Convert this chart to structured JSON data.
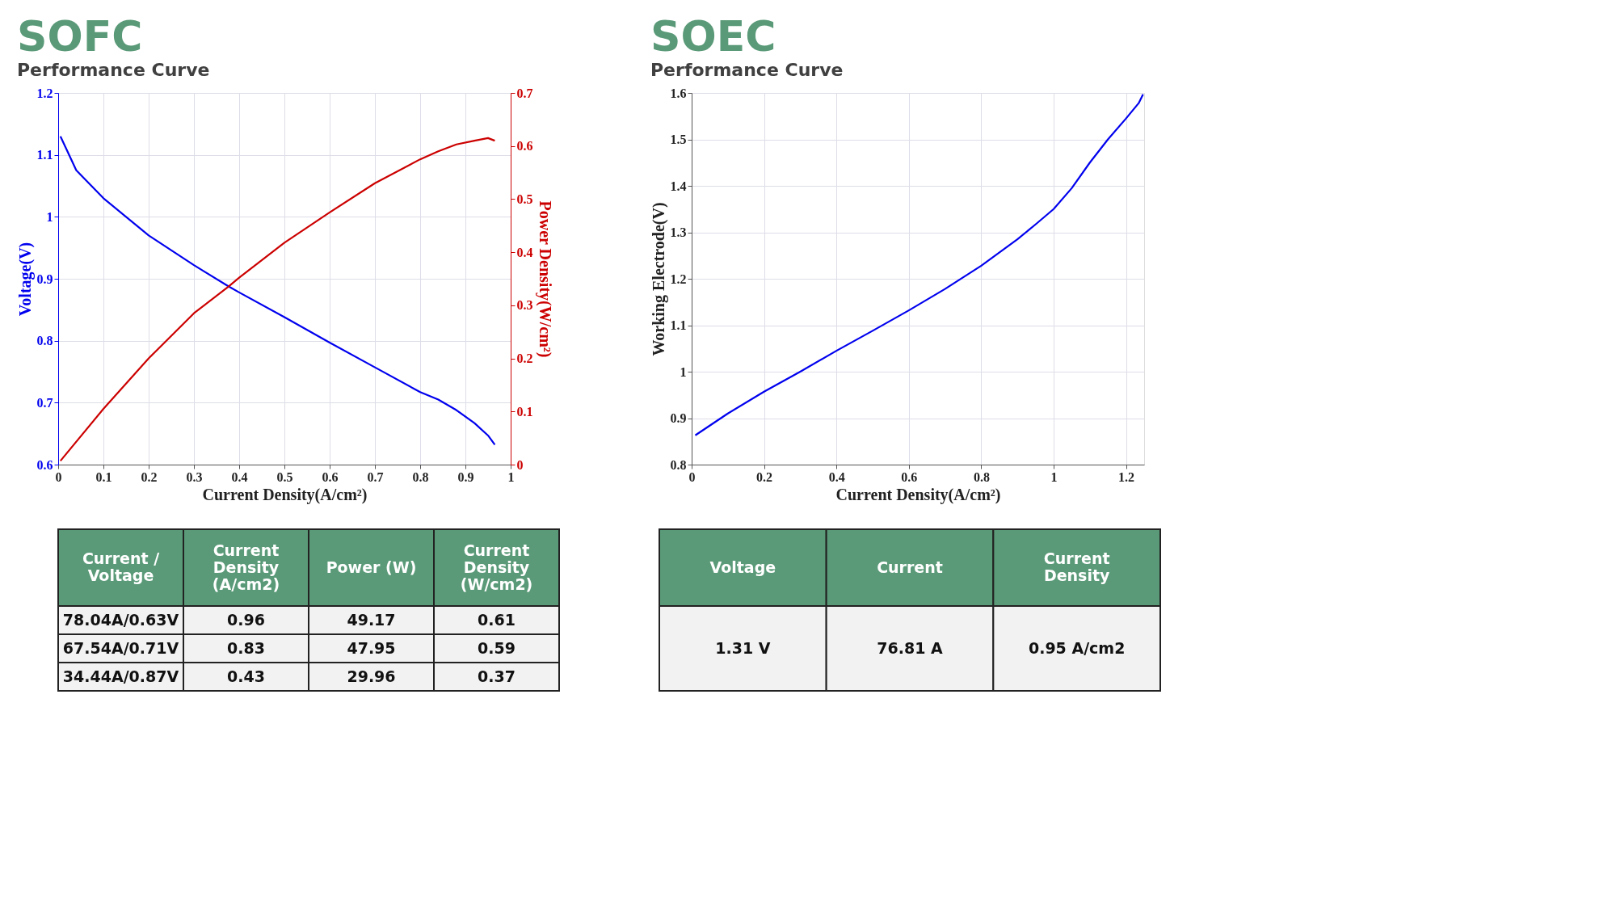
{
  "chart_data": [
    {
      "type": "line",
      "title": "SOFC",
      "subtitle": "Performance Curve",
      "xlabel": "Current Density(A/cm²)",
      "ylabel": "Voltage(V)",
      "y2label": "Power Density(W/cm²)",
      "xlim": [
        0,
        1
      ],
      "xticks": [
        0,
        0.1,
        0.2,
        0.3,
        0.4,
        0.5,
        0.6,
        0.7,
        0.8,
        0.9,
        1
      ],
      "ylim": [
        0.6,
        1.2
      ],
      "yticks": [
        0.6,
        0.7,
        0.8,
        0.9,
        1,
        1.1,
        1.2
      ],
      "y2lim": [
        0,
        0.7
      ],
      "y2ticks": [
        0,
        0.1,
        0.2,
        0.3,
        0.4,
        0.5,
        0.6,
        0.7
      ],
      "grid": true,
      "series": [
        {
          "color": "#0000ee",
          "x": [
            0.005,
            0.04,
            0.1,
            0.15,
            0.2,
            0.3,
            0.376,
            0.4,
            0.5,
            0.6,
            0.7,
            0.8,
            0.84,
            0.88,
            0.92,
            0.95,
            0.965
          ],
          "values": [
            1.13,
            1.075,
            1.03,
            1.0,
            0.97,
            0.922,
            0.888,
            0.878,
            0.838,
            0.797,
            0.757,
            0.717,
            0.705,
            0.688,
            0.667,
            0.647,
            0.632
          ]
        },
        {
          "color": "#cc0000",
          "axis": "y2",
          "x": [
            0.005,
            0.1,
            0.2,
            0.3,
            0.376,
            0.4,
            0.5,
            0.6,
            0.7,
            0.8,
            0.84,
            0.88,
            0.92,
            0.95,
            0.965
          ],
          "values": [
            0.007,
            0.105,
            0.2,
            0.285,
            0.335,
            0.352,
            0.418,
            0.475,
            0.53,
            0.575,
            0.59,
            0.603,
            0.61,
            0.615,
            0.61
          ]
        }
      ]
    },
    {
      "type": "line",
      "title": "SOEC",
      "subtitle": "Performance Curve",
      "xlabel": "Current Density(A/cm²)",
      "ylabel": "Working Electrode(V)",
      "xlim": [
        0,
        1.25
      ],
      "xticks": [
        0,
        0.2,
        0.4,
        0.6,
        0.8,
        1,
        1.2
      ],
      "ylim": [
        0.8,
        1.6
      ],
      "yticks": [
        0.8,
        0.9,
        1,
        1.1,
        1.2,
        1.3,
        1.4,
        1.5,
        1.6
      ],
      "grid": true,
      "series": [
        {
          "color": "#0000ee",
          "x": [
            0.01,
            0.1,
            0.2,
            0.3,
            0.4,
            0.5,
            0.6,
            0.7,
            0.8,
            0.9,
            0.95,
            1.0,
            1.05,
            1.1,
            1.15,
            1.2,
            1.235,
            1.247
          ],
          "values": [
            0.863,
            0.91,
            0.957,
            1.0,
            1.045,
            1.088,
            1.132,
            1.178,
            1.228,
            1.285,
            1.317,
            1.35,
            1.395,
            1.45,
            1.5,
            1.545,
            1.578,
            1.597
          ]
        }
      ]
    },
    {
      "type": "other",
      "color": "#5a9a78",
      "categories": [
        "Current / Voltage",
        "Current Density (A/cm2)",
        "Power (W)",
        "Current Density (W/cm2)"
      ],
      "annotations": [
        "78.04A/0.63V",
        "0.96",
        "49.17",
        "0.61",
        "67.54A/0.71V",
        "0.83",
        "47.95",
        "0.59",
        "34.44A/0.87V",
        "0.43",
        "29.96",
        "0.37"
      ]
    },
    {
      "type": "other",
      "color": "#5a9a78",
      "categories": [
        "Voltage",
        "Current",
        "Current Density"
      ],
      "annotations": [
        "1.31 V",
        "76.81 A",
        "0.95 A/cm2"
      ]
    }
  ]
}
